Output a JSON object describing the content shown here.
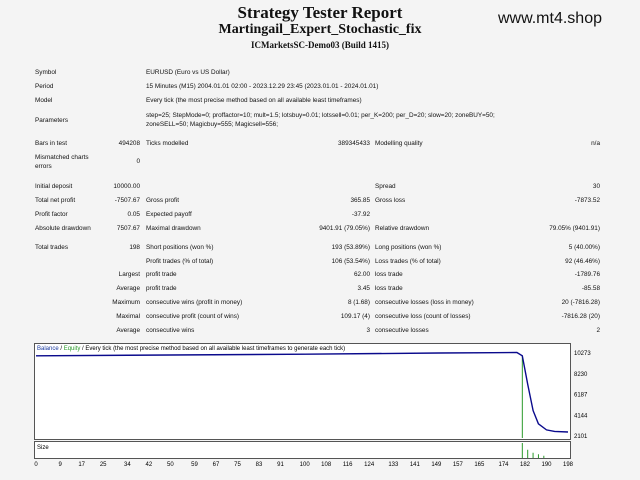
{
  "site": "www.mt4.shop",
  "title": "Strategy Tester Report",
  "expert": "Martingail_Expert_Stochastic_fix",
  "server": "ICMarketsSC-Demo03 (Build 1415)",
  "info": {
    "symbol_label": "Symbol",
    "symbol": "EURUSD (Euro vs US Dollar)",
    "period_label": "Period",
    "period": "15 Minutes (M15) 2004.01.01 02:00 - 2023.12.29 23:45 (2023.01.01 - 2024.01.01)",
    "model_label": "Model",
    "model": "Every tick (the most precise method based on all available least timeframes)",
    "params_label": "Parameters",
    "params_1": "step=25; StepMode=0; proffactor=10; mult=1.5; lotsbuy=0.01; lotssell=0.01; per_K=200; per_D=20; slow=20; zoneBUY=50;",
    "params_2": "zoneSELL=50; Magicbuy=555; Magicsell=556;",
    "bars_label": "Bars in test",
    "bars": "494208",
    "ticks_label": "Ticks modelled",
    "ticks": "389345433",
    "quality_label": "Modelling quality",
    "quality": "n/a",
    "mismatch_label_1": "Mismatched charts",
    "mismatch_label_2": "errors",
    "mismatch": "0"
  },
  "stats": {
    "deposit_label": "Initial deposit",
    "deposit": "10000.00",
    "spread_label": "Spread",
    "spread": "30",
    "net_label": "Total net profit",
    "net": "-7507.67",
    "gp_label": "Gross profit",
    "gp": "365.85",
    "gl_label": "Gross loss",
    "gl": "-7873.52",
    "pf_label": "Profit factor",
    "pf": "0.05",
    "ep_label": "Expected payoff",
    "ep": "-37.92",
    "add_label": "Absolute drawdown",
    "add": "7507.67",
    "mdd_label": "Maximal drawdown",
    "mdd": "9401.91 (79.05%)",
    "rdd_label": "Relative drawdown",
    "rdd": "79.05% (9401.91)",
    "tt_label": "Total trades",
    "tt": "198",
    "sp_label": "Short positions (won %)",
    "sp": "193 (53.89%)",
    "lp_label": "Long positions (won %)",
    "lp": "5 (40.00%)",
    "pt_label": "Profit trades (% of total)",
    "pt": "106 (53.54%)",
    "lt_label": "Loss trades (% of total)",
    "lt": "92 (46.46%)",
    "largest": "Largest",
    "average": "Average",
    "maximum": "Maximum",
    "maximal": "Maximal",
    "lpt_label": "profit trade",
    "lpt": "62.00",
    "llt_label": "loss trade",
    "llt": "-1789.76",
    "apt_label": "profit trade",
    "apt": "3.45",
    "alt_label": "loss trade",
    "alt": "-85.58",
    "mcw_label": "consecutive wins (profit in money)",
    "mcw": "8 (1.68)",
    "mcl_label": "consecutive losses (loss in money)",
    "mcl": "20 (-7816.28)",
    "xcp_label": "consecutive profit (count of wins)",
    "xcp": "109.17 (4)",
    "xcl_label": "consecutive loss (count of losses)",
    "xcl": "-7816.28 (20)",
    "acw_label": "consecutive wins",
    "acw": "3",
    "acl_label": "consecutive losses",
    "acl": "2"
  },
  "chart_data": {
    "type": "line",
    "legend_balance": "Balance",
    "legend_sep": " / ",
    "legend_equity": "Equity",
    "legend_rest": " / Every tick (the most precise method based on all available least timeframes to generate each tick)",
    "size_label": "Size",
    "y_ticks": [
      "10273",
      "8230",
      "6187",
      "4144",
      "2101"
    ],
    "x_ticks": [
      "0",
      "9",
      "17",
      "25",
      "34",
      "42",
      "50",
      "59",
      "67",
      "75",
      "83",
      "91",
      "100",
      "108",
      "116",
      "124",
      "133",
      "141",
      "149",
      "157",
      "165",
      "174",
      "182",
      "190",
      "198"
    ],
    "ylim": [
      2101,
      10273
    ],
    "xlim": [
      0,
      198
    ],
    "balance_x": [
      0,
      50,
      100,
      150,
      170,
      179,
      181,
      183,
      185,
      187,
      190,
      193,
      198
    ],
    "balance_y": [
      10000,
      10080,
      10150,
      10270,
      10300,
      10320,
      10000,
      7200,
      4600,
      3300,
      2700,
      2550,
      2492
    ],
    "size_bars": [
      [
        181,
        1.0
      ],
      [
        183,
        0.55
      ],
      [
        185,
        0.35
      ],
      [
        187,
        0.25
      ],
      [
        189,
        0.15
      ]
    ],
    "colors": {
      "balance": "#0a0a8c",
      "equity": "#2a9a2a",
      "legend_link": "#1a3aa0"
    }
  }
}
